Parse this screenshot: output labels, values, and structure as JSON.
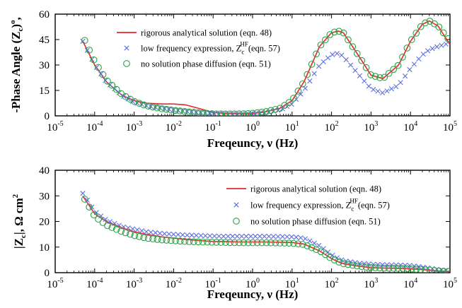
{
  "chart_data": [
    {
      "type": "line",
      "ylabel": "-Phase Angle (Z",
      "ylabel_sub": "c",
      "ylabel_end": ")",
      "ylabel_sup": "o",
      "ylabel_tail": ",",
      "xlabel": "Freqeuncy, ν (Hz)",
      "xscale": "log",
      "xlim": [
        1e-05,
        100000.0
      ],
      "ylim": [
        0,
        60
      ],
      "yticks": [
        0,
        15,
        30,
        45,
        60
      ],
      "xticks": [
        -5,
        -4,
        -3,
        -2,
        -1,
        0,
        1,
        2,
        3,
        4,
        5
      ],
      "legend_position": "top-left",
      "series": [
        {
          "name": "rigorous analytical solution (eqn. 48)",
          "style": "line",
          "color": "#e8262b",
          "x": [
            5e-05,
            0.0001,
            0.0002,
            0.0005,
            0.001,
            0.002,
            0.005,
            0.01,
            0.02,
            0.05,
            0.1,
            0.2,
            0.5,
            1,
            2,
            5,
            10,
            20,
            50,
            100,
            150,
            200,
            500,
            1000,
            2000,
            5000,
            10000,
            20000,
            30000,
            50000,
            100000
          ],
          "y": [
            44,
            30,
            20,
            12,
            9,
            7.5,
            7,
            7,
            6.5,
            4,
            2,
            1.4,
            1.2,
            1.4,
            2.2,
            4.5,
            9,
            20,
            41,
            49,
            50,
            49,
            35,
            24,
            22,
            30,
            44,
            54,
            56,
            53,
            42
          ]
        },
        {
          "name": "low frequency expression, Z",
          "name_sub": "c",
          "name_sup": "HF",
          "name_tail": "(eqn. 57)",
          "style": "x",
          "color": "#5b6ee0",
          "x": [
            5e-05,
            0.0001,
            0.0002,
            0.0005,
            0.001,
            0.002,
            0.005,
            0.01,
            0.02,
            0.05,
            0.1,
            0.2,
            0.5,
            1,
            2,
            5,
            10,
            20,
            50,
            100,
            150,
            200,
            500,
            1000,
            2000,
            5000,
            10000,
            20000,
            30000,
            50000,
            100000
          ],
          "y": [
            44,
            30,
            20,
            12,
            8,
            6,
            4.5,
            3.5,
            2.7,
            1.8,
            1.3,
            1,
            1,
            1.2,
            1.8,
            3.5,
            7,
            15,
            30,
            36,
            37,
            35,
            24,
            16,
            13.5,
            18,
            28,
            36,
            39,
            41,
            43
          ]
        },
        {
          "name": "no solution phase diffusion (eqn. 51)",
          "style": "o",
          "color": "#2ea043",
          "x": [
            5e-05,
            0.0001,
            0.0002,
            0.0005,
            0.001,
            0.002,
            0.005,
            0.01,
            0.02,
            0.05,
            0.1,
            0.2,
            0.5,
            1,
            2,
            5,
            10,
            20,
            50,
            100,
            150,
            200,
            500,
            1000,
            2000,
            5000,
            10000,
            20000,
            30000,
            50000,
            100000
          ],
          "y": [
            47,
            32,
            21,
            12.5,
            8.5,
            6,
            4.2,
            3.3,
            2.5,
            1.7,
            1.2,
            1.1,
            1.2,
            1.5,
            2.3,
            4.5,
            9,
            20,
            41,
            49,
            50,
            49,
            35,
            24,
            22,
            30,
            44,
            54,
            56,
            53,
            44
          ]
        }
      ]
    },
    {
      "type": "line",
      "ylabel": "|Z",
      "ylabel_sub": "c",
      "ylabel_end": "|, Ω cm",
      "ylabel_sup": "2",
      "xlabel": "Freqeuncy, ν (Hz)",
      "xscale": "log",
      "xlim": [
        1e-05,
        100000.0
      ],
      "ylim": [
        0,
        40
      ],
      "yticks": [
        0,
        10,
        20,
        30,
        40
      ],
      "xticks": [
        -5,
        -4,
        -3,
        -2,
        -1,
        0,
        1,
        2,
        3,
        4,
        5
      ],
      "legend_position": "top-right",
      "series": [
        {
          "name": "rigorous analytical solution (eqn. 48)",
          "style": "line",
          "color": "#e8262b",
          "x": [
            5e-05,
            0.0001,
            0.0002,
            0.0005,
            0.001,
            0.002,
            0.005,
            0.01,
            0.02,
            0.05,
            0.1,
            0.2,
            0.5,
            1,
            2,
            5,
            10,
            20,
            50,
            100,
            150,
            200,
            500,
            1000,
            2000,
            5000,
            10000,
            20000,
            30000,
            50000,
            100000
          ],
          "y": [
            30,
            23,
            20,
            17.5,
            16,
            15,
            14,
            13.5,
            13,
            12.5,
            12.2,
            12.1,
            12,
            12,
            12,
            11.9,
            11.8,
            11.2,
            8.5,
            5.5,
            4.2,
            3.5,
            2.5,
            2,
            1.8,
            1.7,
            1.5,
            1.2,
            1,
            0.7,
            0.4
          ]
        },
        {
          "name": "low frequency expression, Z",
          "name_sub": "c",
          "name_sup": "HF",
          "name_tail": "(eqn. 57)",
          "style": "x",
          "color": "#5b6ee0",
          "x": [
            5e-05,
            0.0001,
            0.0002,
            0.0005,
            0.001,
            0.002,
            0.005,
            0.01,
            0.02,
            0.05,
            0.1,
            0.2,
            0.5,
            1,
            2,
            5,
            10,
            20,
            50,
            100,
            150,
            200,
            500,
            1000,
            2000,
            5000,
            10000,
            20000,
            30000,
            50000,
            100000
          ],
          "y": [
            31,
            24,
            20.5,
            18,
            17,
            16,
            15.3,
            15,
            14.7,
            14.5,
            14.3,
            14.2,
            14.2,
            14.2,
            14.2,
            14.1,
            14,
            13.5,
            10.5,
            7,
            5.5,
            4.7,
            3.7,
            3.3,
            3.1,
            3,
            2.8,
            2.2,
            1.8,
            1.2,
            0.7
          ]
        },
        {
          "name": "no solution phase diffusion (eqn. 51)",
          "style": "o",
          "color": "#2ea043",
          "x": [
            5e-05,
            0.0001,
            0.0002,
            0.0005,
            0.001,
            0.002,
            0.005,
            0.01,
            0.02,
            0.05,
            0.1,
            0.2,
            0.5,
            1,
            2,
            5,
            10,
            20,
            50,
            100,
            150,
            200,
            500,
            1000,
            2000,
            5000,
            10000,
            20000,
            30000,
            50000,
            100000
          ],
          "y": [
            30,
            22,
            18.5,
            16,
            14.5,
            13.5,
            12.8,
            12.5,
            12.2,
            12,
            11.9,
            11.8,
            11.7,
            11.7,
            11.7,
            11.6,
            11.5,
            11,
            8.5,
            5.5,
            4.2,
            3.5,
            2.5,
            2,
            1.8,
            1.7,
            1.5,
            1.2,
            1,
            0.7,
            0.4
          ]
        }
      ]
    }
  ]
}
